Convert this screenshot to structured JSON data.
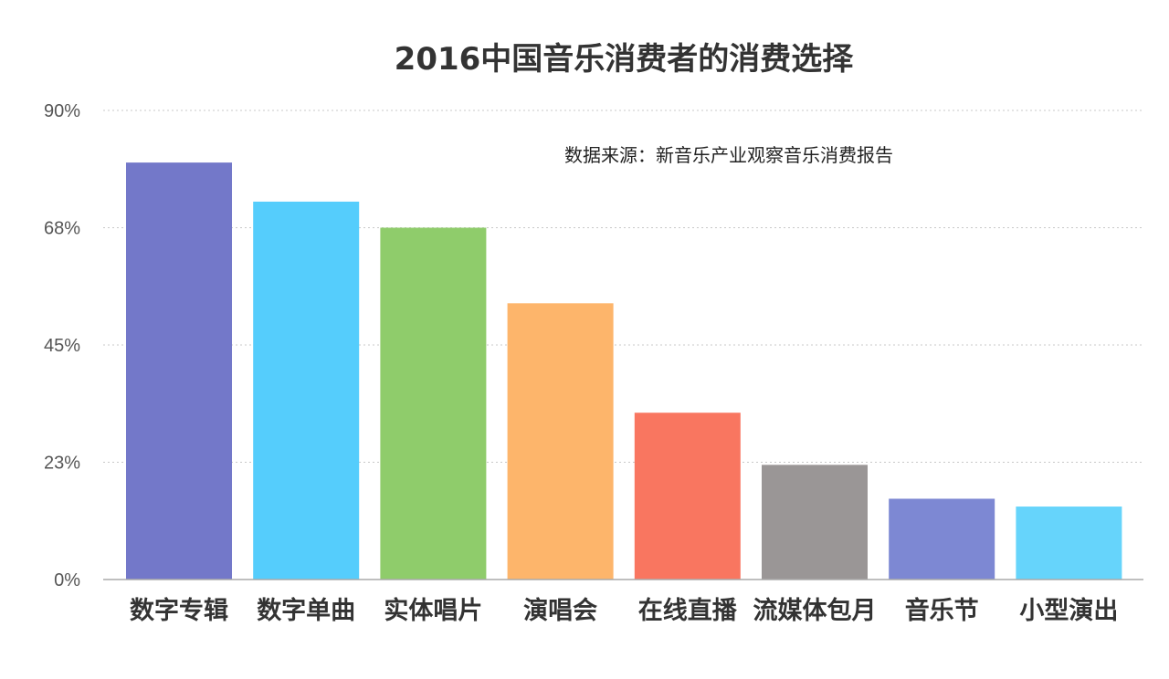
{
  "chart_data": {
    "type": "bar",
    "title": "2016中国音乐消费者的消费选择",
    "annotation": "数据来源：新音乐产业观察音乐消费报告",
    "categories": [
      "数字专辑",
      "数字单曲",
      "实体唱片",
      "演唱会",
      "在线直播",
      "流媒体包月",
      "音乐节",
      "小型演出"
    ],
    "values": [
      80,
      72.5,
      67.5,
      53,
      32,
      22,
      15.5,
      14
    ],
    "colors": [
      "#7378c9",
      "#55cdfc",
      "#8fcc6b",
      "#fdb56b",
      "#f97660",
      "#9a9696",
      "#7d88d3",
      "#66d4fb"
    ],
    "y_ticks": [
      {
        "value": 0,
        "label": "0%"
      },
      {
        "value": 22.5,
        "label": "23%"
      },
      {
        "value": 45,
        "label": "45%"
      },
      {
        "value": 67.5,
        "label": "68%"
      },
      {
        "value": 90,
        "label": "90%"
      }
    ],
    "ylim": [
      0,
      90
    ],
    "grid": true,
    "legend": "none",
    "xlabel": "",
    "ylabel": ""
  }
}
